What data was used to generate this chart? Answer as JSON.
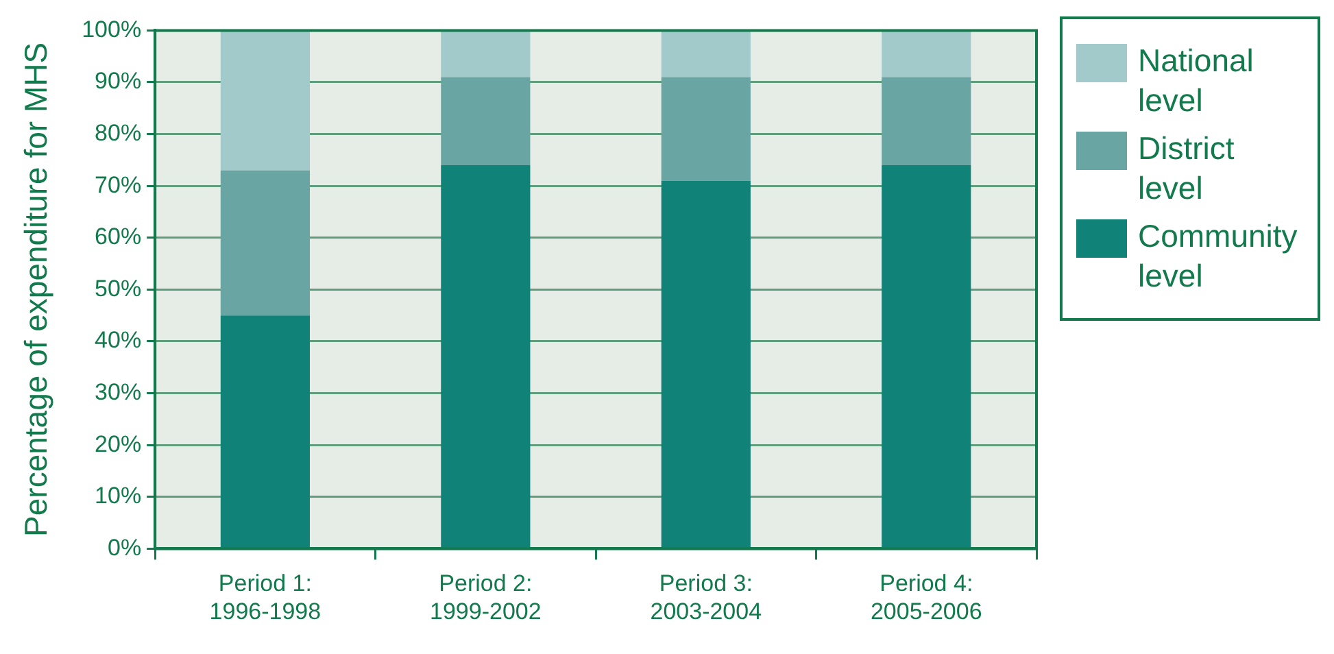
{
  "chart_data": {
    "type": "bar",
    "stacked": true,
    "ylabel": "Percentage of expenditure for MHS",
    "categories": [
      "Period 1:\n1996-1998",
      "Period 2:\n1999-2002",
      "Period 3:\n2003-2004",
      "Period 4:\n2005-2006"
    ],
    "series": [
      {
        "name": "Community level",
        "color": "#118277",
        "values": [
          45,
          74,
          71,
          74
        ]
      },
      {
        "name": "District level",
        "color": "#69a5a2",
        "values": [
          28,
          17,
          20,
          17
        ]
      },
      {
        "name": "National level",
        "color": "#a2cacb",
        "values": [
          27,
          9,
          9,
          9
        ]
      }
    ],
    "ylim": [
      0,
      100
    ],
    "yticks": [
      {
        "value": 0,
        "label": "0%"
      },
      {
        "value": 10,
        "label": "10%"
      },
      {
        "value": 20,
        "label": "20%"
      },
      {
        "value": 30,
        "label": "30%"
      },
      {
        "value": 40,
        "label": "40%"
      },
      {
        "value": 50,
        "label": "50%"
      },
      {
        "value": 60,
        "label": "60%"
      },
      {
        "value": 70,
        "label": "70%"
      },
      {
        "value": 80,
        "label": "80%"
      },
      {
        "value": 90,
        "label": "90%"
      },
      {
        "value": 100,
        "label": "100%"
      }
    ],
    "grid": "y",
    "legend": "right"
  }
}
